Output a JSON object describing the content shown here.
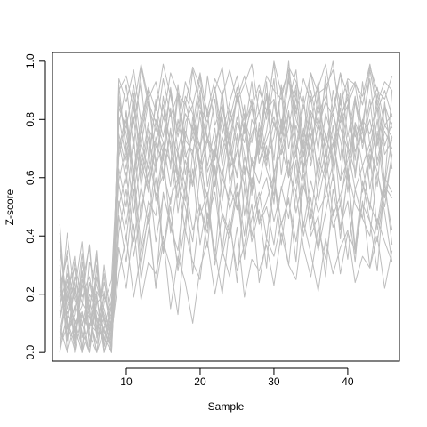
{
  "chart_data": {
    "type": "line",
    "title": "",
    "xlabel": "Sample",
    "ylabel": "Z-score",
    "xlim": [
      0,
      47
    ],
    "ylim": [
      -0.03,
      1.03
    ],
    "x_ticks": [
      "10",
      "20",
      "30",
      "40"
    ],
    "y_ticks": [
      "0.0",
      "0.2",
      "0.4",
      "0.6",
      "0.8",
      "1.0"
    ],
    "legend": "none",
    "grid": false,
    "line_color": "#bdbdbd",
    "x": [
      1,
      2,
      3,
      4,
      5,
      6,
      7,
      8,
      9,
      10,
      11,
      12,
      13,
      14,
      15,
      16,
      17,
      18,
      19,
      20,
      21,
      22,
      23,
      24,
      25,
      26,
      27,
      28,
      29,
      30,
      31,
      32,
      33,
      34,
      35,
      36,
      37,
      38,
      39,
      40,
      41,
      42,
      43,
      44,
      45,
      46
    ],
    "series": [
      {
        "values": [
          0.3,
          0.05,
          0.22,
          0.1,
          0.0,
          0.18,
          0.07,
          0.02,
          0.86,
          0.75,
          0.62,
          0.8,
          0.55,
          0.71,
          0.66,
          0.84,
          0.58,
          0.73,
          0.69,
          0.81,
          0.64,
          0.77,
          0.52,
          0.7,
          0.88,
          0.61,
          0.75,
          0.83,
          0.67,
          0.79,
          0.72,
          0.96,
          0.68,
          0.85,
          0.74,
          0.81,
          0.63,
          0.9,
          0.77,
          0.7,
          0.86,
          0.72,
          0.8,
          0.66,
          0.78,
          0.74
        ]
      },
      {
        "values": [
          0.12,
          0.25,
          0.04,
          0.31,
          0.15,
          0.0,
          0.21,
          0.06,
          0.92,
          0.68,
          0.81,
          0.57,
          0.74,
          0.62,
          0.88,
          0.7,
          0.53,
          0.79,
          0.85,
          0.61,
          0.73,
          0.66,
          0.9,
          0.58,
          0.69,
          0.82,
          0.64,
          0.71,
          0.93,
          0.6,
          0.77,
          1.0,
          0.73,
          0.62,
          0.88,
          0.69,
          0.95,
          0.59,
          0.81,
          0.87,
          0.66,
          0.93,
          0.71,
          0.84,
          0.58,
          0.9
        ]
      },
      {
        "values": [
          0.05,
          0.19,
          0.33,
          0.0,
          0.24,
          0.11,
          0.02,
          0.16,
          0.58,
          0.44,
          0.63,
          0.36,
          0.52,
          0.47,
          0.68,
          0.41,
          0.59,
          0.5,
          0.38,
          0.62,
          0.46,
          0.55,
          0.35,
          0.57,
          0.49,
          0.64,
          0.4,
          0.53,
          0.6,
          0.45,
          0.56,
          0.66,
          0.48,
          0.61,
          0.42,
          0.57,
          0.69,
          0.47,
          0.54,
          0.63,
          0.36,
          0.58,
          0.51,
          0.44,
          0.6,
          0.55
        ]
      },
      {
        "values": [
          0.41,
          0.08,
          0.15,
          0.27,
          0.03,
          0.2,
          0.0,
          0.09,
          0.78,
          0.92,
          0.7,
          0.98,
          0.85,
          0.76,
          0.94,
          0.81,
          0.89,
          0.73,
          0.97,
          0.84,
          0.79,
          0.91,
          0.75,
          0.86,
          0.95,
          0.8,
          0.72,
          0.9,
          0.83,
          0.99,
          0.77,
          0.93,
          0.87,
          0.74,
          0.96,
          0.82,
          0.88,
          1.0,
          0.79,
          0.85,
          0.92,
          0.76,
          0.97,
          0.83,
          0.9,
          0.81
        ]
      },
      {
        "values": [
          0.0,
          0.14,
          0.07,
          0.22,
          0.36,
          0.05,
          0.12,
          0.01,
          0.47,
          0.31,
          0.56,
          0.25,
          0.42,
          0.6,
          0.34,
          0.5,
          0.28,
          0.45,
          0.63,
          0.37,
          0.53,
          0.3,
          0.48,
          0.41,
          0.58,
          0.33,
          0.46,
          0.55,
          0.39,
          0.61,
          0.44,
          0.52,
          0.38,
          0.57,
          0.49,
          0.35,
          0.59,
          0.43,
          0.51,
          0.32,
          0.56,
          0.46,
          0.4,
          0.62,
          0.48,
          0.31
        ]
      },
      {
        "values": [
          0.22,
          0.33,
          0.0,
          0.13,
          0.08,
          0.29,
          0.04,
          0.18,
          0.7,
          0.82,
          0.59,
          0.75,
          0.88,
          0.64,
          0.72,
          0.57,
          0.8,
          0.67,
          0.74,
          0.9,
          0.62,
          0.69,
          0.84,
          0.71,
          0.6,
          0.78,
          0.86,
          0.65,
          0.73,
          0.81,
          0.68,
          0.77,
          0.92,
          0.63,
          0.7,
          0.85,
          0.74,
          0.66,
          0.89,
          0.61,
          0.79,
          0.72,
          0.87,
          0.64,
          0.76,
          0.7
        ]
      },
      {
        "values": [
          0.09,
          0.0,
          0.26,
          0.17,
          0.12,
          0.03,
          0.3,
          0.07,
          0.63,
          0.5,
          0.74,
          0.45,
          0.68,
          0.54,
          0.61,
          0.77,
          0.48,
          0.66,
          0.57,
          0.72,
          0.43,
          0.69,
          0.6,
          0.52,
          0.75,
          0.47,
          0.65,
          0.58,
          0.71,
          0.51,
          0.8,
          0.62,
          0.55,
          0.73,
          0.46,
          0.67,
          0.59,
          0.78,
          0.5,
          0.7,
          0.56,
          0.64,
          0.49,
          0.76,
          0.53,
          0.68
        ]
      },
      {
        "values": [
          0.35,
          0.18,
          0.11,
          0.02,
          0.2,
          0.14,
          0.08,
          0.0,
          0.94,
          0.86,
          0.97,
          0.79,
          0.91,
          0.83,
          0.99,
          0.88,
          0.76,
          0.93,
          0.85,
          0.96,
          0.81,
          0.9,
          0.98,
          0.78,
          0.87,
          0.95,
          0.84,
          0.92,
          0.8,
          1.0,
          0.89,
          0.97,
          0.82,
          0.94,
          0.86,
          0.91,
          0.99,
          0.83,
          0.96,
          0.88,
          0.93,
          0.85,
          0.98,
          0.9,
          0.87,
          0.95
        ]
      },
      {
        "values": [
          0.16,
          0.27,
          0.09,
          0.0,
          0.31,
          0.23,
          0.13,
          0.05,
          0.52,
          0.39,
          0.61,
          0.3,
          0.48,
          0.22,
          0.55,
          0.43,
          0.35,
          0.58,
          0.27,
          0.5,
          0.41,
          0.63,
          0.33,
          0.46,
          0.24,
          0.57,
          0.38,
          0.49,
          0.29,
          0.6,
          0.44,
          0.53,
          0.31,
          0.65,
          0.4,
          0.47,
          0.26,
          0.56,
          0.42,
          0.61,
          0.34,
          0.51,
          0.45,
          0.28,
          0.59,
          0.37
        ]
      },
      {
        "values": [
          0.03,
          0.12,
          0.2,
          0.38,
          0.06,
          0.0,
          0.17,
          0.25,
          0.75,
          0.63,
          0.84,
          0.69,
          0.58,
          0.8,
          0.72,
          0.65,
          0.88,
          0.61,
          0.77,
          0.7,
          0.83,
          0.57,
          0.74,
          0.66,
          0.81,
          0.68,
          0.55,
          0.79,
          0.64,
          0.86,
          0.71,
          0.6,
          0.9,
          0.67,
          0.78,
          0.62,
          0.82,
          0.73,
          0.59,
          0.85,
          0.69,
          0.76,
          0.63,
          0.8,
          0.57,
          0.74
        ]
      },
      {
        "values": [
          0.28,
          0.04,
          0.16,
          0.09,
          0.24,
          0.19,
          0.0,
          0.11,
          0.88,
          0.71,
          0.79,
          0.93,
          0.67,
          0.85,
          0.74,
          0.9,
          0.69,
          0.82,
          0.77,
          0.95,
          0.72,
          0.87,
          0.64,
          0.8,
          0.91,
          0.75,
          0.84,
          0.68,
          0.89,
          0.78,
          0.73,
          0.86,
          0.97,
          0.7,
          0.83,
          0.76,
          0.92,
          0.65,
          0.81,
          0.88,
          0.74,
          0.79,
          0.94,
          0.71,
          0.85,
          0.77
        ]
      },
      {
        "values": [
          0.19,
          0.35,
          0.07,
          0.14,
          0.0,
          0.26,
          0.1,
          0.03,
          0.41,
          0.56,
          0.33,
          0.49,
          0.62,
          0.38,
          0.54,
          0.45,
          0.3,
          0.58,
          0.42,
          0.51,
          0.36,
          0.64,
          0.47,
          0.39,
          0.55,
          0.32,
          0.6,
          0.44,
          0.5,
          0.37,
          0.57,
          0.46,
          0.66,
          0.4,
          0.53,
          0.35,
          0.48,
          0.61,
          0.43,
          0.52,
          0.31,
          0.59,
          0.45,
          0.38,
          0.56,
          0.42
        ]
      },
      {
        "values": [
          0.07,
          0.21,
          0.29,
          0.05,
          0.15,
          0.33,
          0.02,
          0.13,
          0.81,
          0.66,
          0.89,
          0.6,
          0.77,
          0.71,
          0.85,
          0.63,
          0.92,
          0.69,
          0.58,
          0.83,
          0.74,
          0.67,
          0.9,
          0.62,
          0.79,
          0.72,
          0.87,
          0.65,
          0.76,
          0.94,
          0.61,
          0.82,
          0.7,
          0.88,
          0.64,
          0.78,
          0.71,
          0.84,
          0.66,
          0.93,
          0.6,
          0.8,
          0.75,
          0.86,
          0.68,
          0.73
        ]
      },
      {
        "values": [
          0.44,
          0.1,
          0.01,
          0.23,
          0.18,
          0.06,
          0.27,
          0.0,
          0.67,
          0.8,
          0.54,
          0.72,
          0.63,
          0.87,
          0.59,
          0.76,
          0.68,
          0.52,
          0.81,
          0.65,
          0.74,
          0.57,
          0.85,
          0.7,
          0.61,
          0.79,
          0.56,
          0.73,
          0.88,
          0.62,
          0.69,
          0.83,
          0.58,
          0.77,
          0.66,
          0.9,
          0.6,
          0.71,
          0.84,
          0.55,
          0.78,
          0.64,
          0.72,
          0.57,
          0.86,
          0.63
        ]
      },
      {
        "values": [
          0.0,
          0.3,
          0.18,
          0.12,
          0.09,
          0.21,
          0.15,
          0.04,
          0.36,
          0.22,
          0.44,
          0.18,
          0.31,
          0.27,
          0.4,
          0.15,
          0.33,
          0.24,
          0.1,
          0.29,
          0.38,
          0.2,
          0.35,
          0.26,
          0.43,
          0.19,
          0.32,
          0.28,
          0.37,
          0.23,
          0.41,
          0.3,
          0.25,
          0.45,
          0.34,
          0.21,
          0.39,
          0.27,
          0.36,
          0.42,
          0.24,
          0.33,
          0.29,
          0.4,
          0.22,
          0.35
        ]
      },
      {
        "values": [
          0.25,
          0.06,
          0.13,
          0.34,
          0.02,
          0.17,
          0.2,
          0.09,
          0.9,
          0.95,
          0.84,
          0.99,
          0.87,
          0.93,
          0.8,
          0.96,
          0.89,
          0.85,
          0.98,
          0.91,
          0.83,
          0.94,
          0.88,
          0.97,
          0.86,
          0.92,
          0.99,
          0.82,
          0.95,
          0.9,
          0.87,
          0.98,
          0.93,
          0.84,
          0.96,
          0.89,
          0.91,
          0.97,
          0.85,
          0.94,
          0.92,
          0.88,
          0.99,
          0.86,
          0.93,
          0.9
        ]
      },
      {
        "values": [
          0.11,
          0.23,
          0.05,
          0.28,
          0.13,
          0.0,
          0.08,
          0.21,
          0.59,
          0.71,
          0.48,
          0.66,
          0.55,
          0.74,
          0.62,
          0.51,
          0.69,
          0.57,
          0.78,
          0.64,
          0.53,
          0.7,
          0.6,
          0.76,
          0.49,
          0.67,
          0.58,
          0.73,
          0.63,
          0.54,
          0.8,
          0.61,
          0.68,
          0.56,
          0.75,
          0.52,
          0.65,
          0.72,
          0.59,
          0.66,
          0.77,
          0.55,
          0.7,
          0.62,
          0.5,
          0.68
        ]
      },
      {
        "values": [
          0.38,
          0.15,
          0.24,
          0.0,
          0.1,
          0.07,
          0.19,
          0.12,
          0.73,
          0.58,
          0.86,
          0.64,
          0.79,
          0.52,
          0.7,
          0.83,
          0.61,
          0.76,
          0.67,
          0.88,
          0.57,
          0.72,
          0.81,
          0.63,
          0.69,
          0.85,
          0.54,
          0.77,
          0.66,
          0.74,
          0.9,
          0.6,
          0.78,
          0.68,
          0.82,
          0.59,
          0.75,
          0.65,
          0.87,
          0.71,
          0.62,
          0.8,
          0.56,
          0.73,
          0.84,
          0.67
        ]
      },
      {
        "values": [
          0.02,
          0.09,
          0.31,
          0.19,
          0.26,
          0.12,
          0.05,
          0.0,
          0.5,
          0.62,
          0.38,
          0.57,
          0.44,
          0.66,
          0.35,
          0.53,
          0.6,
          0.41,
          0.69,
          0.47,
          0.55,
          0.32,
          0.63,
          0.49,
          0.58,
          0.4,
          0.67,
          0.45,
          0.52,
          0.61,
          0.37,
          0.56,
          0.71,
          0.43,
          0.59,
          0.48,
          0.54,
          0.65,
          0.39,
          0.62,
          0.51,
          0.46,
          0.68,
          0.42,
          0.57,
          0.53
        ]
      },
      {
        "values": [
          0.32,
          0.0,
          0.1,
          0.16,
          0.37,
          0.08,
          0.24,
          0.14,
          0.84,
          0.77,
          0.92,
          0.71,
          0.86,
          0.79,
          0.68,
          0.91,
          0.74,
          0.88,
          0.82,
          0.7,
          0.95,
          0.78,
          0.85,
          0.73,
          0.89,
          0.76,
          0.93,
          0.69,
          0.83,
          0.87,
          0.75,
          0.94,
          0.8,
          0.72,
          0.9,
          0.77,
          0.86,
          0.81,
          0.96,
          0.74,
          0.88,
          0.7,
          0.84,
          0.91,
          0.78,
          0.82
        ]
      },
      {
        "values": [
          0.14,
          0.41,
          0.2,
          0.07,
          0.0,
          0.3,
          0.11,
          0.06,
          0.27,
          0.4,
          0.19,
          0.34,
          0.46,
          0.22,
          0.38,
          0.29,
          0.13,
          0.42,
          0.31,
          0.25,
          0.48,
          0.35,
          0.2,
          0.44,
          0.28,
          0.37,
          0.51,
          0.24,
          0.39,
          0.33,
          0.45,
          0.3,
          0.55,
          0.36,
          0.26,
          0.43,
          0.32,
          0.49,
          0.27,
          0.41,
          0.35,
          0.52,
          0.29,
          0.46,
          0.38,
          0.31
        ]
      },
      {
        "values": [
          0.21,
          0.11,
          0.03,
          0.25,
          0.14,
          0.35,
          0.0,
          0.1,
          0.69,
          0.83,
          0.61,
          0.77,
          0.9,
          0.65,
          0.81,
          0.72,
          0.59,
          0.86,
          0.75,
          0.63,
          0.79,
          0.91,
          0.68,
          0.84,
          0.71,
          0.57,
          0.8,
          0.74,
          0.88,
          0.66,
          0.92,
          0.7,
          0.85,
          0.62,
          0.78,
          0.93,
          0.67,
          0.82,
          0.73,
          0.6,
          0.87,
          0.76,
          0.64,
          0.89,
          0.71,
          0.79
        ]
      }
    ]
  }
}
